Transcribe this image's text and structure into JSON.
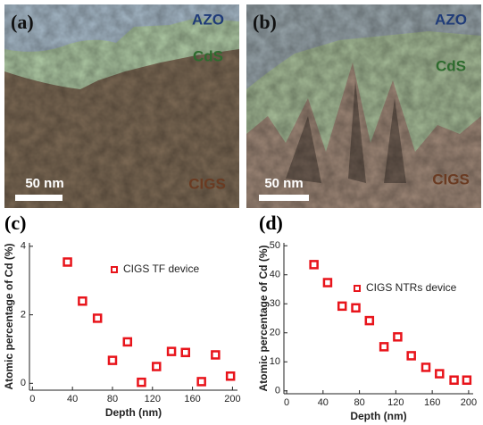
{
  "images": [
    {
      "label": "(a)",
      "layers": [
        "AZO",
        "CdS",
        "CIGS"
      ],
      "scale_bar": "50 nm"
    },
    {
      "label": "(b)",
      "layers": [
        "AZO",
        "CdS",
        "CIGS"
      ],
      "scale_bar": "50 nm"
    }
  ],
  "chart_data": [
    {
      "type": "scatter",
      "label": "(c)",
      "x_label": "Depth (nm)",
      "y_label": "Atomic percentage of Cd (%)",
      "series": [
        {
          "name": "CIGS TF device",
          "color": "#e8141b",
          "x": [
            35,
            50,
            65,
            80,
            95,
            109,
            124,
            139,
            153,
            169,
            183,
            198
          ],
          "values": [
            3.54,
            2.4,
            1.9,
            0.67,
            1.21,
            0.03,
            0.49,
            0.93,
            0.9,
            0.05,
            0.83,
            0.21
          ]
        }
      ],
      "xlim": [
        -3,
        205
      ],
      "xticks": [
        0,
        40,
        80,
        120,
        160,
        200
      ],
      "ylim": [
        -0.2,
        4.1
      ],
      "yticks": [
        0,
        2,
        4
      ]
    },
    {
      "type": "scatter",
      "label": "(d)",
      "x_label": "Depth (nm)",
      "y_label": "Atomic percentage of Cd (%)",
      "series": [
        {
          "name": "CIGS NTRs device",
          "color": "#e8141b",
          "x": [
            30,
            45,
            61,
            76,
            91,
            107,
            122,
            137,
            153,
            168,
            184,
            198
          ],
          "values": [
            43.5,
            37.3,
            29.2,
            28.6,
            24.2,
            15.2,
            18.6,
            12.1,
            8.1,
            5.9,
            3.7,
            3.7
          ]
        }
      ],
      "xlim": [
        -3,
        205
      ],
      "xticks": [
        0,
        40,
        80,
        120,
        160,
        200
      ],
      "ylim": [
        -1,
        51
      ],
      "yticks": [
        0,
        10,
        20,
        30,
        40,
        50
      ]
    }
  ]
}
